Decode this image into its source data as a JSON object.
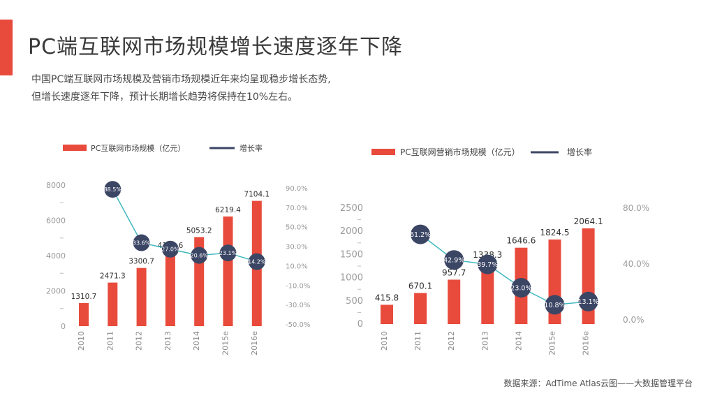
{
  "title": "PC端互联网市场规模增长速度逐年下降",
  "intro": [
    "中国PC端互联网市场规模及营销市场规模近年来均呈现稳步增长态势,",
    "但增长速度逐年下降，预计长期增长趋势将保持在10%左右。"
  ],
  "source": "数据来源：AdTime Atlas云图——大数据管理平台",
  "colors": {
    "bar": "#e84b3c",
    "line": "#3fb8bf",
    "bubble": "#3b4564",
    "accent": "#e84b3c"
  },
  "chart_data": [
    {
      "type": "bar",
      "categories": [
        "2010",
        "2011",
        "2012",
        "2013",
        "2014",
        "2015e",
        "2016e"
      ],
      "series": [
        {
          "name": "PC互联网市场规模（亿元）",
          "type": "bar",
          "axis": "left",
          "values": [
            1310.7,
            2471.3,
            3300.7,
            4190.6,
            5053.2,
            6219.4,
            7104.1
          ],
          "labels": [
            "1310.7",
            "2471.3",
            "3300.7",
            "4190.6",
            "5053.2",
            "6219.4",
            "7104.1"
          ]
        },
        {
          "name": "增长率",
          "type": "line",
          "axis": "right",
          "values": [
            null,
            88.5,
            33.6,
            27.0,
            20.6,
            23.1,
            14.2
          ],
          "labels": [
            "",
            "88.5%",
            "33.6%",
            "27.0%",
            "20.6%",
            "23.1%",
            "14.2%"
          ]
        }
      ],
      "yticks_left": [
        "8000",
        "6000",
        "4000",
        "2000",
        "0"
      ],
      "ylim_left": [
        0,
        8000
      ],
      "yticks_right": [
        "90.0%",
        "70.0%",
        "50.0%",
        "30.0%",
        "10.0%",
        "-10.0%",
        "-30.0%",
        "-50.0%"
      ],
      "ylim_right": [
        -50,
        90
      ],
      "legend_position": "top-left"
    },
    {
      "type": "bar",
      "categories": [
        "2010",
        "2011",
        "2012",
        "2013",
        "2014",
        "2015e",
        "2016e"
      ],
      "series": [
        {
          "name": "PC互联网营销市场规模（亿元）",
          "type": "bar",
          "axis": "left",
          "values": [
            415.8,
            670.1,
            957.7,
            1338.3,
            1646.6,
            1824.5,
            2064.1
          ],
          "labels": [
            "415.8",
            "670.1",
            "957.7",
            "1338.3",
            "1646.6",
            "1824.5",
            "2064.1"
          ]
        },
        {
          "name": "增长率",
          "type": "line",
          "axis": "right",
          "values": [
            null,
            61.2,
            42.9,
            39.7,
            23.0,
            10.8,
            13.1
          ],
          "labels": [
            "",
            "61.2%",
            "42.9%",
            "39.7%",
            "23.0%",
            "10.8%",
            "13.1%"
          ]
        }
      ],
      "yticks_left": [
        "2500",
        "2000",
        "1500",
        "1000",
        "500",
        "0"
      ],
      "ylim_left": [
        0,
        2500
      ],
      "yticks_right": [
        "80.0%",
        "40.0%",
        "0.0%"
      ],
      "ylim_right": [
        0,
        80
      ],
      "legend_position": "top"
    }
  ]
}
